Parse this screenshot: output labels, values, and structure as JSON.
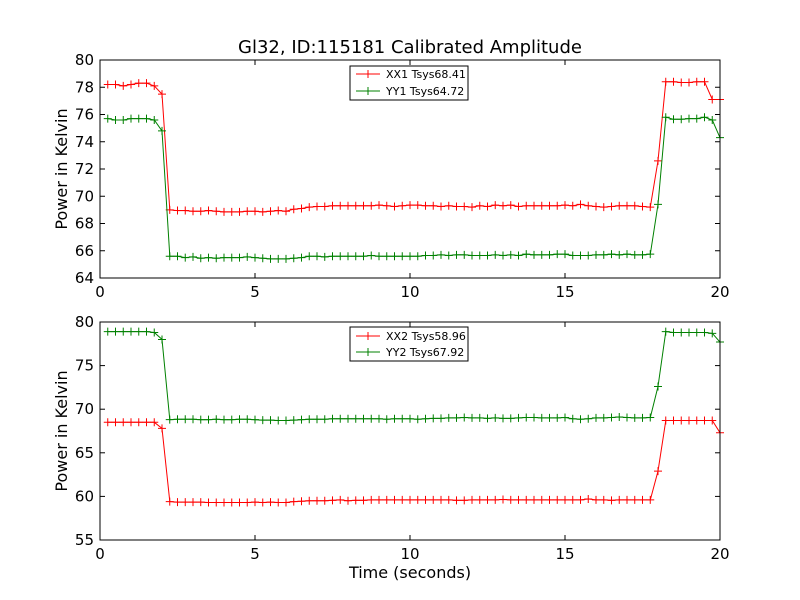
{
  "chart_data": [
    {
      "type": "line",
      "title": "Gl32, ID:115181 Calibrated Amplitude",
      "xlabel": "",
      "ylabel": "Power in Kelvin",
      "xlim": [
        0,
        20
      ],
      "ylim": [
        64,
        80
      ],
      "xticks": [
        0,
        5,
        10,
        15,
        20
      ],
      "yticks": [
        64,
        66,
        68,
        70,
        72,
        74,
        76,
        78,
        80
      ],
      "grid": false,
      "legend_position": "top-center",
      "marker": "+",
      "x": [
        0.25,
        0.5,
        0.75,
        1.0,
        1.25,
        1.5,
        1.75,
        2.0,
        2.25,
        2.5,
        2.75,
        3.0,
        3.25,
        3.5,
        3.75,
        4.0,
        4.25,
        4.5,
        4.75,
        5.0,
        5.25,
        5.5,
        5.75,
        6.0,
        6.25,
        6.5,
        6.75,
        7.0,
        7.25,
        7.5,
        7.75,
        8.0,
        8.25,
        8.5,
        8.75,
        9.0,
        9.25,
        9.5,
        9.75,
        10.0,
        10.25,
        10.5,
        10.75,
        11.0,
        11.25,
        11.5,
        11.75,
        12.0,
        12.25,
        12.5,
        12.75,
        13.0,
        13.25,
        13.5,
        13.75,
        14.0,
        14.25,
        14.5,
        14.75,
        15.0,
        15.25,
        15.5,
        15.75,
        16.0,
        16.25,
        16.5,
        16.75,
        17.0,
        17.25,
        17.5,
        17.75,
        18.0,
        18.25,
        18.5,
        18.75,
        19.0,
        19.25,
        19.5,
        19.75,
        20.0
      ],
      "series": [
        {
          "name": "XX1 Tsys68.41",
          "color": "#ff0000",
          "values": [
            78.2,
            78.2,
            78.1,
            78.2,
            78.3,
            78.3,
            78.1,
            77.5,
            69.0,
            68.95,
            68.95,
            68.9,
            68.9,
            68.95,
            68.9,
            68.85,
            68.85,
            68.85,
            68.9,
            68.9,
            68.85,
            68.9,
            68.95,
            68.9,
            69.05,
            69.1,
            69.2,
            69.25,
            69.25,
            69.3,
            69.3,
            69.3,
            69.3,
            69.3,
            69.3,
            69.35,
            69.3,
            69.25,
            69.3,
            69.35,
            69.35,
            69.3,
            69.3,
            69.25,
            69.3,
            69.25,
            69.25,
            69.2,
            69.3,
            69.25,
            69.35,
            69.3,
            69.35,
            69.25,
            69.3,
            69.3,
            69.3,
            69.3,
            69.3,
            69.35,
            69.3,
            69.4,
            69.3,
            69.25,
            69.2,
            69.25,
            69.3,
            69.3,
            69.3,
            69.25,
            69.2,
            72.6,
            78.4,
            78.4,
            78.35,
            78.35,
            78.4,
            78.4,
            77.1,
            77.1
          ]
        },
        {
          "name": "YY1 Tsys64.72",
          "color": "#008000",
          "values": [
            75.7,
            75.6,
            75.6,
            75.7,
            75.7,
            75.7,
            75.6,
            74.8,
            65.6,
            65.6,
            65.5,
            65.55,
            65.45,
            65.5,
            65.45,
            65.5,
            65.5,
            65.5,
            65.55,
            65.5,
            65.45,
            65.4,
            65.4,
            65.4,
            65.45,
            65.5,
            65.6,
            65.6,
            65.55,
            65.6,
            65.6,
            65.6,
            65.6,
            65.6,
            65.65,
            65.6,
            65.6,
            65.6,
            65.6,
            65.6,
            65.6,
            65.65,
            65.65,
            65.7,
            65.65,
            65.7,
            65.7,
            65.65,
            65.65,
            65.65,
            65.7,
            65.65,
            65.7,
            65.65,
            65.75,
            65.7,
            65.7,
            65.7,
            65.75,
            65.75,
            65.65,
            65.65,
            65.65,
            65.7,
            65.7,
            65.75,
            65.7,
            65.75,
            65.7,
            65.7,
            65.75,
            69.4,
            75.8,
            75.65,
            75.65,
            75.7,
            75.7,
            75.8,
            75.6,
            74.3
          ]
        }
      ]
    },
    {
      "type": "line",
      "title": "",
      "xlabel": "Time (seconds)",
      "ylabel": "Power in Kelvin",
      "xlim": [
        0,
        20
      ],
      "ylim": [
        55,
        80
      ],
      "xticks": [
        0,
        5,
        10,
        15,
        20
      ],
      "yticks": [
        55,
        60,
        65,
        70,
        75,
        80
      ],
      "grid": false,
      "legend_position": "top-center",
      "marker": "+",
      "x": [
        0.25,
        0.5,
        0.75,
        1.0,
        1.25,
        1.5,
        1.75,
        2.0,
        2.25,
        2.5,
        2.75,
        3.0,
        3.25,
        3.5,
        3.75,
        4.0,
        4.25,
        4.5,
        4.75,
        5.0,
        5.25,
        5.5,
        5.75,
        6.0,
        6.25,
        6.5,
        6.75,
        7.0,
        7.25,
        7.5,
        7.75,
        8.0,
        8.25,
        8.5,
        8.75,
        9.0,
        9.25,
        9.5,
        9.75,
        10.0,
        10.25,
        10.5,
        10.75,
        11.0,
        11.25,
        11.5,
        11.75,
        12.0,
        12.25,
        12.5,
        12.75,
        13.0,
        13.25,
        13.5,
        13.75,
        14.0,
        14.25,
        14.5,
        14.75,
        15.0,
        15.25,
        15.5,
        15.75,
        16.0,
        16.25,
        16.5,
        16.75,
        17.0,
        17.25,
        17.5,
        17.75,
        18.0,
        18.25,
        18.5,
        18.75,
        19.0,
        19.25,
        19.5,
        19.75,
        20.0
      ],
      "series": [
        {
          "name": "XX2 Tsys58.96",
          "color": "#ff0000",
          "values": [
            68.5,
            68.5,
            68.5,
            68.5,
            68.5,
            68.5,
            68.5,
            67.8,
            59.4,
            59.35,
            59.35,
            59.35,
            59.35,
            59.3,
            59.3,
            59.3,
            59.3,
            59.3,
            59.3,
            59.35,
            59.3,
            59.35,
            59.3,
            59.3,
            59.4,
            59.45,
            59.5,
            59.5,
            59.5,
            59.55,
            59.6,
            59.5,
            59.55,
            59.55,
            59.6,
            59.6,
            59.6,
            59.6,
            59.6,
            59.6,
            59.6,
            59.6,
            59.6,
            59.6,
            59.6,
            59.55,
            59.55,
            59.6,
            59.6,
            59.6,
            59.6,
            59.65,
            59.6,
            59.6,
            59.6,
            59.6,
            59.6,
            59.6,
            59.6,
            59.6,
            59.6,
            59.6,
            59.7,
            59.6,
            59.6,
            59.55,
            59.6,
            59.6,
            59.6,
            59.6,
            59.6,
            62.9,
            68.7,
            68.7,
            68.7,
            68.7,
            68.7,
            68.7,
            68.7,
            67.3
          ]
        },
        {
          "name": "YY2 Tsys67.92",
          "color": "#008000",
          "values": [
            78.9,
            78.9,
            78.9,
            78.9,
            78.9,
            78.9,
            78.8,
            78.0,
            68.8,
            68.85,
            68.85,
            68.85,
            68.8,
            68.8,
            68.85,
            68.8,
            68.8,
            68.85,
            68.85,
            68.8,
            68.75,
            68.75,
            68.7,
            68.7,
            68.75,
            68.8,
            68.85,
            68.85,
            68.85,
            68.9,
            68.9,
            68.9,
            68.9,
            68.9,
            68.9,
            68.9,
            68.85,
            68.9,
            68.9,
            68.9,
            68.85,
            68.9,
            68.95,
            68.95,
            69.0,
            69.0,
            69.05,
            69.0,
            69.0,
            68.95,
            69.0,
            68.95,
            68.95,
            69.0,
            69.05,
            69.05,
            69.0,
            69.0,
            69.0,
            69.05,
            68.9,
            68.85,
            68.9,
            69.0,
            69.0,
            69.05,
            69.1,
            69.05,
            69.0,
            69.0,
            69.05,
            72.6,
            78.9,
            78.8,
            78.8,
            78.8,
            78.8,
            78.8,
            78.7,
            77.7
          ]
        }
      ]
    }
  ]
}
